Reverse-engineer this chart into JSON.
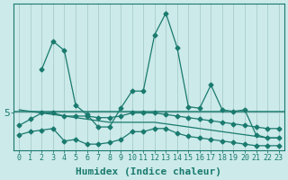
{
  "xlabel": "Humidex (Indice chaleur)",
  "bg_color": "#cceaea",
  "line_color": "#1a7a6e",
  "grid_color": "#aacccc",
  "x_ticks": [
    0,
    1,
    2,
    3,
    4,
    5,
    6,
    7,
    8,
    9,
    10,
    11,
    12,
    13,
    14,
    15,
    16,
    17,
    18,
    19,
    20,
    21,
    22,
    23
  ],
  "y_tick_label": "5",
  "y_tick_val": 5.0,
  "ylim": [
    3.8,
    8.5
  ],
  "xlim": [
    -0.5,
    23.5
  ],
  "series1_x": [
    0,
    1,
    2,
    3,
    4,
    5,
    6,
    7,
    8,
    9,
    10,
    11,
    12,
    13,
    14,
    15,
    16,
    17,
    18,
    19,
    20,
    21,
    22,
    23
  ],
  "series1": [
    4.6,
    4.8,
    5.0,
    5.0,
    4.9,
    4.9,
    4.9,
    4.85,
    4.85,
    4.9,
    5.0,
    5.0,
    5.0,
    4.95,
    4.9,
    4.85,
    4.8,
    4.75,
    4.7,
    4.65,
    4.6,
    4.55,
    4.5,
    4.5
  ],
  "series2_x": [
    0,
    1,
    2,
    3,
    4,
    5,
    6,
    7,
    8,
    9,
    10,
    11,
    12,
    13,
    14,
    15,
    16,
    17,
    18,
    19,
    20,
    21,
    22,
    23
  ],
  "series2": [
    5.1,
    5.05,
    5.0,
    4.95,
    4.9,
    4.85,
    4.8,
    4.75,
    4.7,
    4.7,
    4.7,
    4.7,
    4.7,
    4.65,
    4.6,
    4.55,
    4.5,
    4.45,
    4.4,
    4.35,
    4.3,
    4.25,
    4.2,
    4.2
  ],
  "hline_y": 5.05,
  "series3_x": [
    2,
    3,
    4,
    5,
    6,
    7,
    8,
    9,
    10,
    11,
    12,
    13,
    14,
    15,
    16,
    17,
    18,
    19,
    20,
    21,
    22,
    23
  ],
  "series3": [
    6.4,
    7.3,
    7.0,
    5.25,
    4.95,
    4.55,
    4.55,
    5.15,
    5.7,
    5.7,
    7.5,
    8.2,
    7.1,
    5.2,
    5.15,
    5.9,
    5.1,
    5.05,
    5.1,
    4.3,
    4.2,
    4.2
  ],
  "series4_x": [
    0,
    1,
    2,
    3,
    4,
    5,
    6,
    7,
    8,
    9,
    10,
    11,
    12,
    13,
    14,
    15,
    16,
    17,
    18,
    19,
    20,
    21,
    22,
    23
  ],
  "series4": [
    4.3,
    4.4,
    4.45,
    4.5,
    4.1,
    4.15,
    4.0,
    4.0,
    4.05,
    4.15,
    4.4,
    4.4,
    4.5,
    4.5,
    4.35,
    4.25,
    4.2,
    4.15,
    4.1,
    4.05,
    4.0,
    3.95,
    3.95,
    3.95
  ],
  "font_size_xlabel": 8,
  "font_size_ticks": 6,
  "font_size_ytick": 8,
  "marker": "D",
  "marker_size": 2.5,
  "lw": 0.9
}
